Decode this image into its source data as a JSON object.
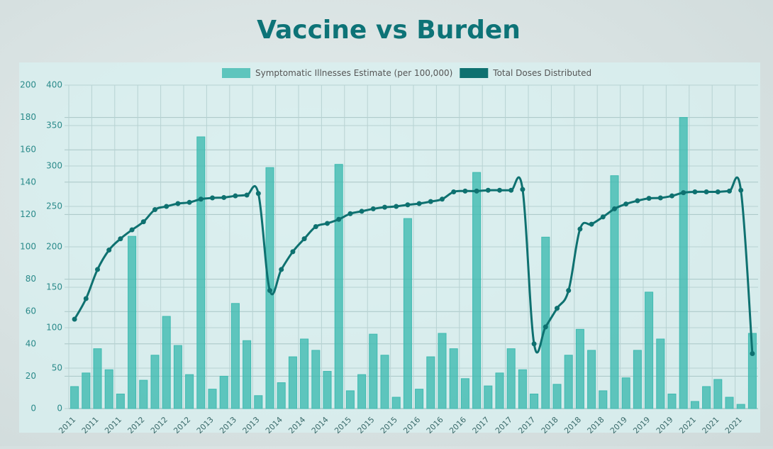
{
  "chart_data": {
    "type": "bar+line",
    "title": "Vaccine vs Burden",
    "categories": [
      "2011",
      null,
      "2011",
      null,
      "2011",
      null,
      "2012",
      null,
      "2012",
      null,
      "2012",
      null,
      "2013",
      null,
      "2013",
      null,
      "2013",
      null,
      "2014",
      null,
      "2014",
      null,
      "2014",
      null,
      "2015",
      null,
      "2015",
      null,
      "2015",
      null,
      "2016",
      null,
      "2016",
      null,
      "2016",
      null,
      "2017",
      null,
      "2017",
      null,
      "2017",
      null,
      "2018",
      null,
      "2018",
      null,
      "2018",
      null,
      "2019",
      null,
      "2019",
      null,
      "2019",
      null,
      "2021",
      null,
      "2021",
      null,
      "2021",
      null
    ],
    "series": [
      {
        "name": "Symptomatic Illnesses Estimate (per 100,000)",
        "type": "bar",
        "color": "#3fbab0",
        "axis": "y",
        "values": [
          13.6,
          22,
          37,
          24,
          9,
          106.5,
          17.5,
          33,
          57,
          39,
          21,
          168,
          12,
          20,
          65,
          42,
          8,
          149,
          16,
          32,
          43,
          36,
          23,
          151,
          11,
          21,
          46,
          33,
          7,
          117.5,
          12,
          32,
          46.5,
          37,
          18.5,
          146,
          14,
          22,
          37,
          24,
          9,
          106,
          15,
          33,
          49,
          36,
          11,
          144,
          19,
          36,
          72,
          43,
          9,
          180,
          4.4,
          13.6,
          18,
          7,
          2.6,
          46.5
        ]
      },
      {
        "name": "Total Doses Distributed",
        "type": "line",
        "color": "#0e7170",
        "axis": "y2",
        "values": [
          110.5,
          136,
          172,
          196,
          210,
          221,
          231,
          246,
          250,
          253.5,
          255,
          259,
          260.5,
          261,
          263,
          264,
          266,
          146,
          172,
          194,
          210,
          225,
          229,
          234,
          241,
          244,
          247,
          249,
          250,
          252,
          253.5,
          256,
          259,
          268,
          269,
          269,
          270,
          270,
          270,
          271,
          80,
          101,
          124,
          146,
          222,
          228,
          237,
          247,
          253,
          257,
          260,
          260.5,
          263,
          267,
          268,
          268,
          268,
          269,
          270,
          68
        ]
      }
    ],
    "ylim": [
      0,
      200
    ],
    "yticks": [
      0,
      20,
      40,
      60,
      80,
      100,
      120,
      140,
      160,
      180,
      200
    ],
    "y2lim": [
      0,
      400
    ],
    "y2ticks": [
      0,
      50,
      100,
      150,
      200,
      250,
      300,
      350,
      400
    ],
    "grid": true,
    "legend": "top"
  }
}
